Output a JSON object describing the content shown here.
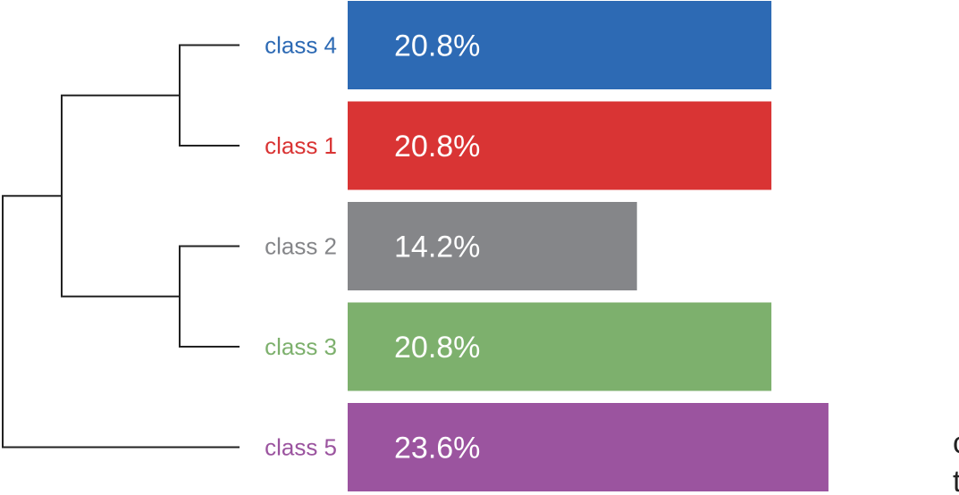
{
  "chart_data": {
    "type": "bar",
    "orientation": "horizontal",
    "categories": [
      "class 4",
      "class 1",
      "class 2",
      "class 3",
      "class 5"
    ],
    "values": [
      20.8,
      20.8,
      14.2,
      20.8,
      23.6
    ],
    "value_labels": [
      "20.8%",
      "20.8%",
      "14.2%",
      "20.8%",
      "23.6%"
    ],
    "colors": [
      "#2d6ab4",
      "#d93434",
      "#858689",
      "#7db06d",
      "#9b549f"
    ],
    "xlim": [
      0,
      27.2
    ],
    "dendrogram": {
      "leaf_order": [
        "class 4",
        "class 1",
        "class 2",
        "class 3",
        "class 5"
      ],
      "merges": [
        [
          "class 4",
          "class 1"
        ],
        [
          "class 2",
          "class 3"
        ],
        [
          "class 4 + class 1",
          "class 2 + class 3"
        ],
        [
          "class 4 + class 1 + class 2 + class 3",
          "class 5"
        ]
      ],
      "line_color": "#222222"
    },
    "title": "",
    "xlabel": "",
    "ylabel": ""
  },
  "edge_text": [
    "c",
    "t"
  ]
}
